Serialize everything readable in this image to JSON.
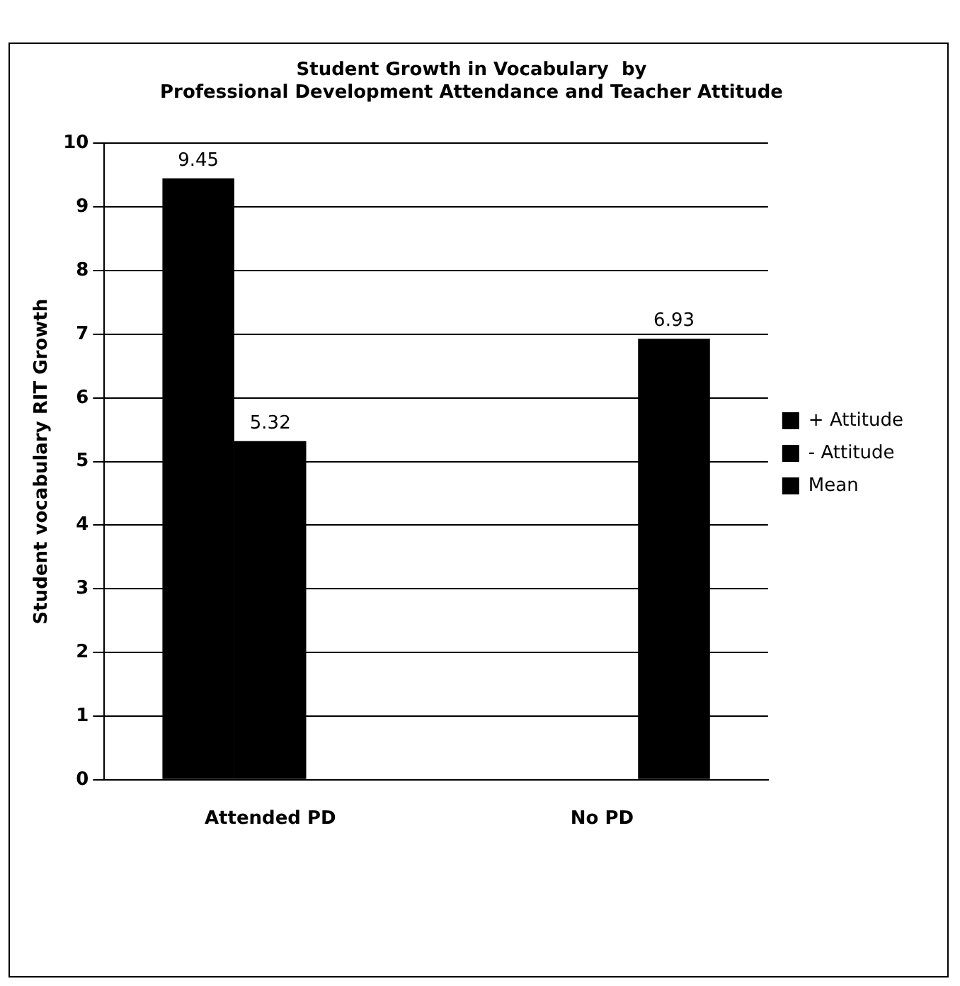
{
  "chart_data": {
    "type": "bar",
    "title": "Student Growth in Vocabulary  by\nProfessional Development Attendance and Teacher Attitude",
    "ylabel": "Student vocabulary RIT Growth",
    "categories": [
      "Attended PD",
      "No PD"
    ],
    "series": [
      {
        "name": "+ Attitude",
        "color": "#000000",
        "values": [
          9.45,
          null
        ]
      },
      {
        "name": "- Attitude",
        "color": "#000000",
        "values": [
          5.32,
          null
        ]
      },
      {
        "name": "Mean",
        "color": "#000000",
        "values": [
          null,
          6.93
        ]
      }
    ],
    "ylim": [
      0,
      10
    ],
    "yticks": [
      0,
      1,
      2,
      3,
      4,
      5,
      6,
      7,
      8,
      9,
      10
    ],
    "grid": "y",
    "legend": "right",
    "data_labels": true
  }
}
